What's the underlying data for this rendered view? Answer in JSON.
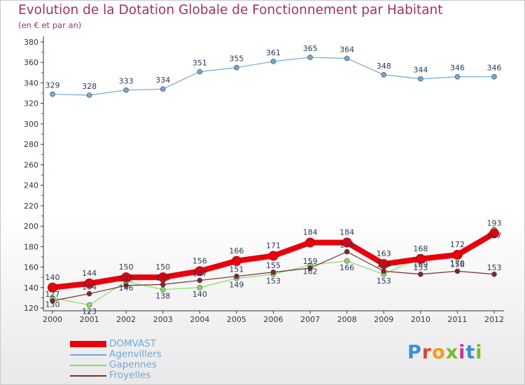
{
  "header": {
    "title": "Evolution de la Dotation Globale de Fonctionnement par Habitant",
    "subtitle": "(en € et par an)"
  },
  "logo": {
    "text": "Proxiti",
    "colors": [
      "#3a8fd6",
      "#e0452a",
      "#f39a1e",
      "#7ab828",
      "#c23a8a",
      "#3a8fd6",
      "#7ab828"
    ]
  },
  "chart_data": {
    "type": "line",
    "title": "Evolution de la Dotation Globale de Fonctionnement par Habitant",
    "subtitle": "(en € et par an)",
    "xlabel": "",
    "ylabel": "",
    "ylim": [
      120,
      380
    ],
    "yticks": [
      120,
      140,
      160,
      180,
      200,
      220,
      240,
      260,
      280,
      300,
      320,
      340,
      360,
      380
    ],
    "categories": [
      "2000",
      "2001",
      "2002",
      "2003",
      "2004",
      "2005",
      "2006",
      "2007",
      "2008",
      "2009",
      "2010",
      "2011",
      "2012"
    ],
    "grid": false,
    "legend_position": "bottom-left",
    "series": [
      {
        "name": "DOMVAST",
        "color": "#e8000b",
        "values": [
          140,
          144,
          150,
          150,
          156,
          166,
          171,
          184,
          184,
          163,
          168,
          172,
          193
        ],
        "labels_shown": true
      },
      {
        "name": "Agenvillers",
        "color": "#6fa8d6",
        "values": [
          329,
          328,
          333,
          334,
          351,
          355,
          361,
          365,
          364,
          348,
          344,
          346,
          346
        ],
        "labels_shown": true
      },
      {
        "name": "Gapennes",
        "color": "#88dd66",
        "values": [
          130,
          123,
          146,
          138,
          140,
          149,
          153,
          162,
          166,
          153,
          169,
          170,
          197
        ],
        "labels_shown": true
      },
      {
        "name": "Froyelles",
        "color": "#7a2c2c",
        "values": [
          127,
          134,
          142,
          143,
          147,
          151,
          155,
          159,
          175,
          156,
          153,
          156,
          153
        ],
        "labels_shown": true
      }
    ]
  }
}
